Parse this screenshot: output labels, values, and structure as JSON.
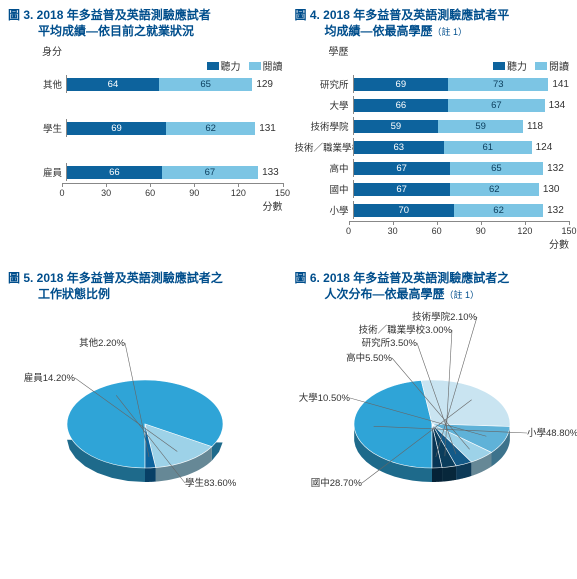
{
  "colors": {
    "title": "#004e8c",
    "listening": "#0d639d",
    "reading": "#7cc5e4",
    "axis": "#888888",
    "text": "#333333",
    "background": "#ffffff"
  },
  "legend": {
    "listening": "聽力",
    "reading": "閱讀"
  },
  "chart3": {
    "title_a": "圖 3. 2018 年多益普及英語測驗應試者",
    "title_b": "平均成績—依目前之就業狀況",
    "ylabel": "身分",
    "type": "stacked-bar-horizontal",
    "xmax": 150,
    "xtick_step": 30,
    "xticks": [
      "0",
      "30",
      "60",
      "90",
      "120",
      "150"
    ],
    "xlabel": "分數",
    "categories": [
      "其他",
      "學生",
      "雇員"
    ],
    "listening": [
      64,
      69,
      66
    ],
    "reading": [
      65,
      62,
      67
    ],
    "totals": [
      129,
      131,
      133
    ]
  },
  "chart4": {
    "title_a": "圖 4. 2018 年多益普及英語測驗應試者平",
    "title_b": "均成績—依最高學歷",
    "note": "（註 1）",
    "ylabel": "學歷",
    "type": "stacked-bar-horizontal",
    "xmax": 150,
    "xtick_step": 30,
    "xticks": [
      "0",
      "30",
      "60",
      "90",
      "120",
      "150"
    ],
    "xlabel": "分數",
    "categories": [
      "研究所",
      "大學",
      "技術學院",
      "技術／職業學校",
      "高中",
      "國中",
      "小學"
    ],
    "listening": [
      69,
      66,
      59,
      63,
      67,
      67,
      70
    ],
    "reading": [
      73,
      67,
      59,
      61,
      65,
      62,
      62
    ],
    "totals": [
      141,
      134,
      118,
      124,
      132,
      130,
      132
    ]
  },
  "chart5": {
    "title_a": "圖 5. 2018 年多益普及英語測驗應試者之",
    "title_b": "工作狀態比例",
    "type": "pie-3d",
    "slices": [
      {
        "label": "學生83.60%",
        "value": 83.6,
        "color": "#2fa4d7"
      },
      {
        "label": "雇員14.20%",
        "value": 14.2,
        "color": "#9dd2e8"
      },
      {
        "label": "其他2.20%",
        "value": 2.2,
        "color": "#0d639d"
      }
    ]
  },
  "chart6": {
    "title_a": "圖 6. 2018 年多益普及英語測驗應試者之",
    "title_b": "人次分布—依最高學歷",
    "note": "（註 1）",
    "type": "pie-3d",
    "slices": [
      {
        "label": "小學48.80%",
        "value": 48.8,
        "color": "#2fa4d7"
      },
      {
        "label": "國中28.70%",
        "value": 28.7,
        "color": "#c9e4f1"
      },
      {
        "label": "大學10.50%",
        "value": 10.5,
        "color": "#5fb2d8"
      },
      {
        "label": "高中5.50%",
        "value": 5.5,
        "color": "#9dd2e8"
      },
      {
        "label": "研究所3.50%",
        "value": 3.5,
        "color": "#145a88"
      },
      {
        "label": "技術／職業學校3.00%",
        "value": 3.0,
        "color": "#0b3d5c"
      },
      {
        "label": "技術學院2.10%",
        "value": 2.1,
        "color": "#083555"
      }
    ]
  }
}
